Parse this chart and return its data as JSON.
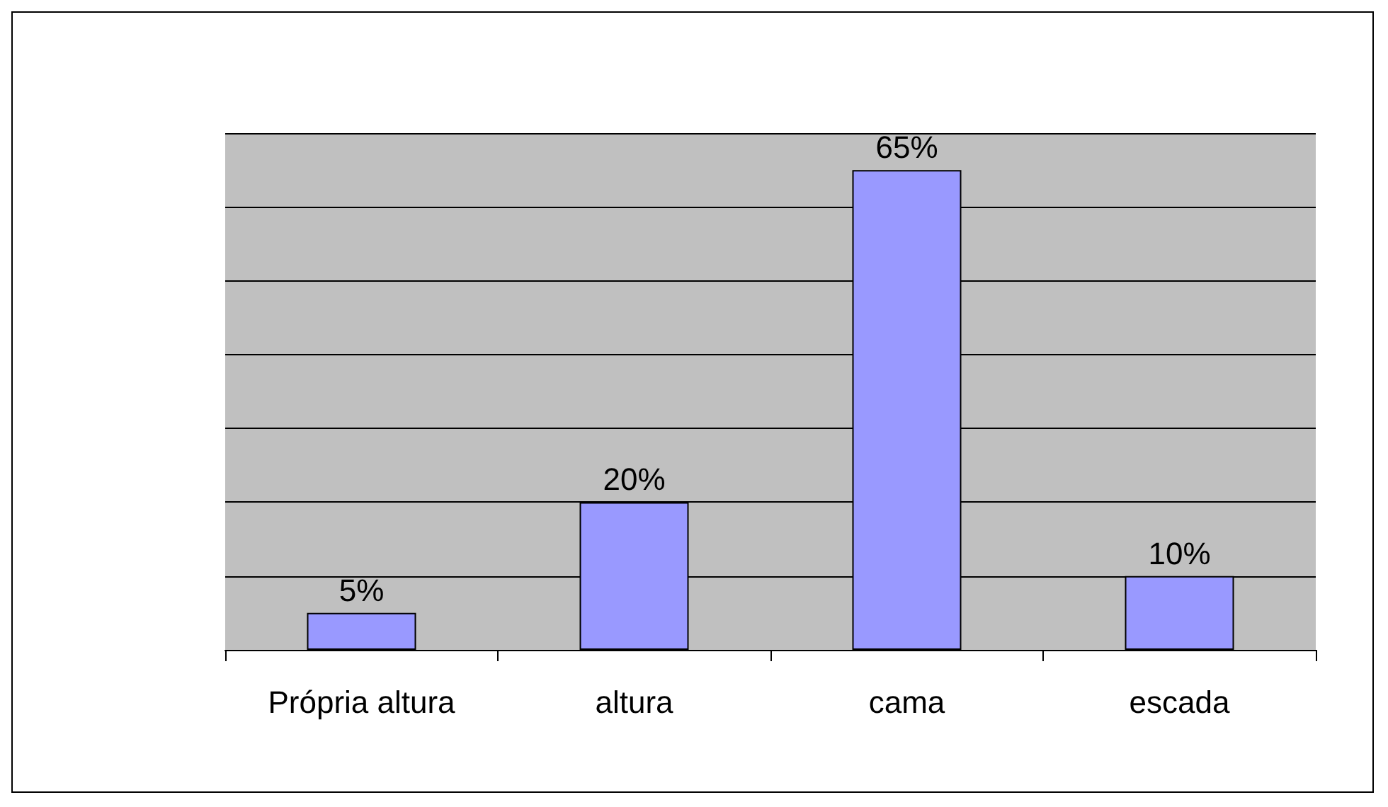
{
  "chart_data": {
    "type": "bar",
    "categories": [
      "Própria altura",
      "altura",
      "cama",
      "escada"
    ],
    "values": [
      5,
      20,
      65,
      10
    ],
    "value_labels": [
      "5%",
      "20%",
      "65%",
      "10%"
    ],
    "color": "#9999ff",
    "ylim": [
      0,
      70
    ],
    "yticks": [
      {
        "value": 0,
        "label": null
      },
      {
        "value": 10,
        "label": null
      },
      {
        "value": 20,
        "label": null
      },
      {
        "value": 30,
        "label": null
      },
      {
        "value": 40,
        "label": null
      },
      {
        "value": 50,
        "label": null
      },
      {
        "value": 60,
        "label": null
      },
      {
        "value": 70,
        "label": null
      }
    ],
    "tick_labels": "x",
    "grid": "y"
  }
}
